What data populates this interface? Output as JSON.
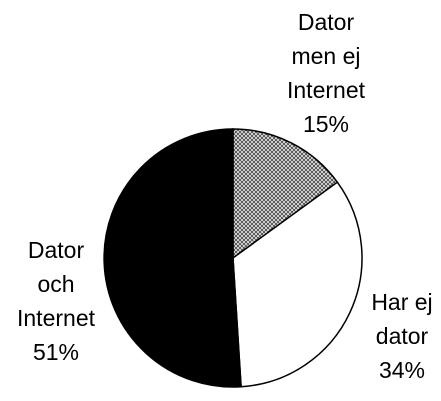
{
  "chart_data": {
    "type": "pie",
    "slices": [
      {
        "label_lines": [
          "Dator",
          "men ej",
          "Internet"
        ],
        "percent_label": "15%",
        "value": 15,
        "color": "#9a9a9a",
        "pattern": "crosshatch"
      },
      {
        "label_lines": [
          "Har ej",
          "dator"
        ],
        "percent_label": "34%",
        "value": 34,
        "color": "#ffffff",
        "pattern": "none"
      },
      {
        "label_lines": [
          "Dator",
          "och",
          "Internet"
        ],
        "percent_label": "51%",
        "value": 51,
        "color": "#000000",
        "pattern": "none"
      }
    ],
    "start_angle_deg": 0,
    "direction": "clockwise",
    "legend": "none",
    "title": ""
  }
}
